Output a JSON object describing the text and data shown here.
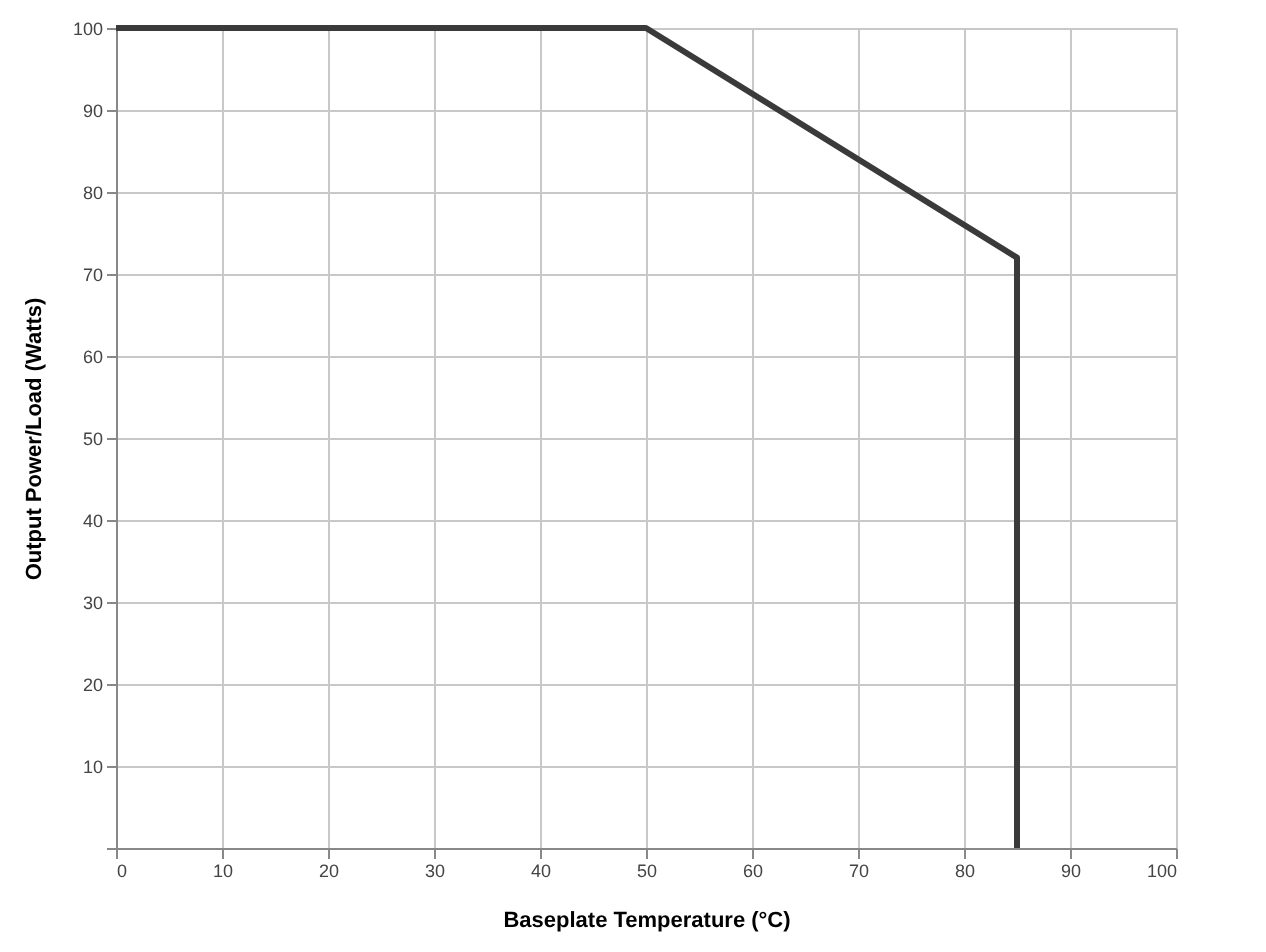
{
  "chart_data": {
    "type": "line",
    "xlabel": "Baseplate Temperature (°C)",
    "ylabel": "Output Power/Load (Watts)",
    "x": [
      0,
      50,
      85,
      85
    ],
    "series": [
      {
        "color": "#3a3a3a",
        "values": [
          100,
          100,
          72,
          0
        ]
      }
    ],
    "xlim": [
      0,
      100
    ],
    "xticks": [
      0,
      10,
      20,
      30,
      40,
      50,
      60,
      70,
      80,
      90,
      100
    ],
    "ylim": [
      0,
      100
    ],
    "yticks": [
      {
        "value": 0,
        "label": null
      },
      10,
      20,
      30,
      40,
      50,
      60,
      70,
      80,
      90,
      100
    ],
    "grid": true,
    "marker": "none",
    "line_style": "solid"
  }
}
